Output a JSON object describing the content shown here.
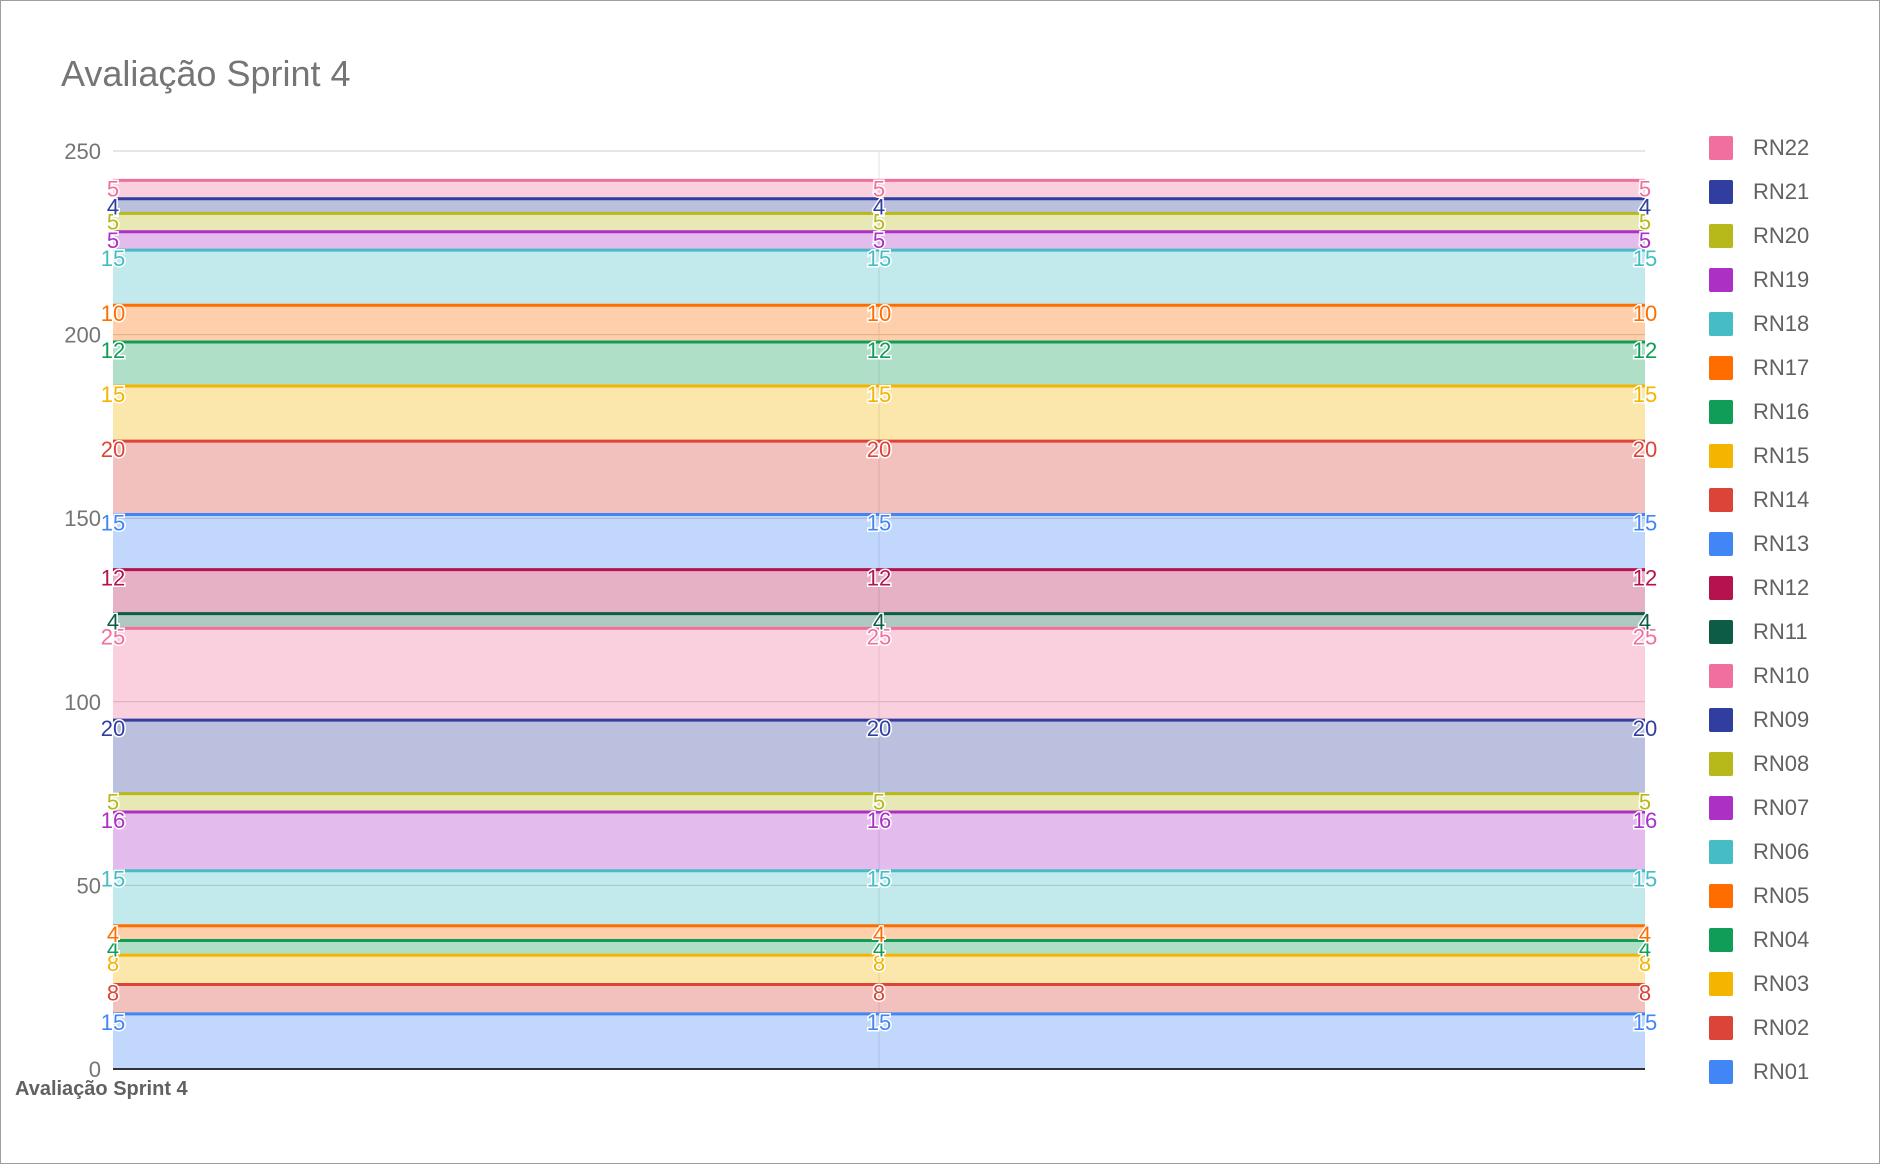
{
  "chart_data": {
    "type": "area",
    "stacked": true,
    "title": "Avaliação Sprint 4",
    "xlabel": "Avaliação Sprint 4",
    "ylabel": "",
    "ylim": [
      0,
      250
    ],
    "yticks": [
      0,
      50,
      100,
      150,
      200,
      250
    ],
    "grid": true,
    "legend_position": "right",
    "points_per_series": 3,
    "series": [
      {
        "name": "RN01",
        "value": 15,
        "color": "#4285f4"
      },
      {
        "name": "RN02",
        "value": 8,
        "color": "#db4437"
      },
      {
        "name": "RN03",
        "value": 8,
        "color": "#f4b400"
      },
      {
        "name": "RN04",
        "value": 4,
        "color": "#0f9d58"
      },
      {
        "name": "RN05",
        "value": 4,
        "color": "#ff6d00"
      },
      {
        "name": "RN06",
        "value": 15,
        "color": "#46bdc6"
      },
      {
        "name": "RN07",
        "value": 16,
        "color": "#ab30c4"
      },
      {
        "name": "RN08",
        "value": 5,
        "color": "#b7b81a"
      },
      {
        "name": "RN09",
        "value": 20,
        "color": "#303f9f"
      },
      {
        "name": "RN10",
        "value": 25,
        "color": "#f06f9e"
      },
      {
        "name": "RN11",
        "value": 4,
        "color": "#0d5c45"
      },
      {
        "name": "RN12",
        "value": 12,
        "color": "#b5134f"
      },
      {
        "name": "RN13",
        "value": 15,
        "color": "#4285f4"
      },
      {
        "name": "RN14",
        "value": 20,
        "color": "#db4437"
      },
      {
        "name": "RN15",
        "value": 15,
        "color": "#f4b400"
      },
      {
        "name": "RN16",
        "value": 12,
        "color": "#0f9d58"
      },
      {
        "name": "RN17",
        "value": 10,
        "color": "#ff6d00"
      },
      {
        "name": "RN18",
        "value": 15,
        "color": "#46bdc6"
      },
      {
        "name": "RN19",
        "value": 5,
        "color": "#ab30c4"
      },
      {
        "name": "RN20",
        "value": 5,
        "color": "#b7b81a"
      },
      {
        "name": "RN21",
        "value": 4,
        "color": "#303f9f"
      },
      {
        "name": "RN22",
        "value": 5,
        "color": "#f06f9e"
      }
    ]
  }
}
